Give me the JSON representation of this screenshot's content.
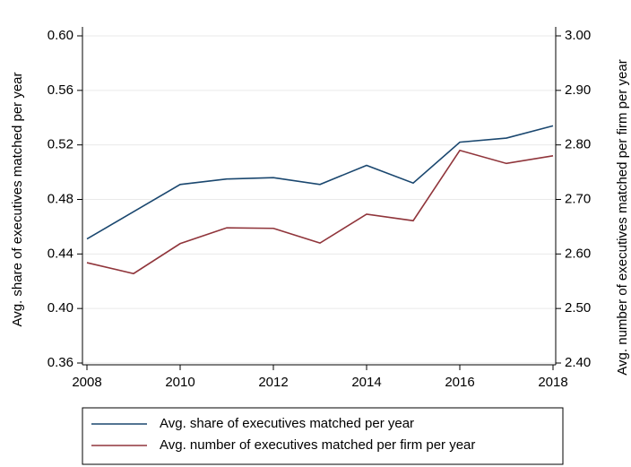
{
  "chart_data": {
    "type": "line",
    "x": [
      2008,
      2009,
      2010,
      2011,
      2012,
      2013,
      2014,
      2015,
      2016,
      2017,
      2018
    ],
    "xlim": [
      2008,
      2018
    ],
    "xticks": [
      2008,
      2010,
      2012,
      2014,
      2016,
      2018
    ],
    "ylabel": "Avg. share of executives matched per year",
    "y2label": "Avg. number of executives matched per firm per year",
    "ylim": [
      0.36,
      0.6
    ],
    "yticks": [
      {
        "value": 0.36,
        "label": "0.36"
      },
      {
        "value": 0.4,
        "label": "0.40"
      },
      {
        "value": 0.44,
        "label": "0.44"
      },
      {
        "value": 0.48,
        "label": "0.48"
      },
      {
        "value": 0.52,
        "label": "0.52"
      },
      {
        "value": 0.56,
        "label": "0.56"
      },
      {
        "value": 0.6,
        "label": "0.60"
      }
    ],
    "y2lim": [
      2.4,
      3.0
    ],
    "y2ticks": [
      {
        "value": 2.4,
        "label": "2.40"
      },
      {
        "value": 2.5,
        "label": "2.50"
      },
      {
        "value": 2.6,
        "label": "2.60"
      },
      {
        "value": 2.7,
        "label": "2.70"
      },
      {
        "value": 2.8,
        "label": "2.80"
      },
      {
        "value": 2.9,
        "label": "2.90"
      },
      {
        "value": 3.0,
        "label": "3.00"
      }
    ],
    "grid": true,
    "legend": "bottom",
    "series": [
      {
        "name": "Avg. share of executives matched per year",
        "color": "#1a476f",
        "axis": "y",
        "values": [
          0.451,
          0.471,
          0.491,
          0.495,
          0.496,
          0.491,
          0.505,
          0.492,
          0.522,
          0.525,
          0.534
        ]
      },
      {
        "name": "Avg. number of executives matched per firm per year",
        "color": "#90353b",
        "axis": "y2",
        "values": [
          2.584,
          2.564,
          2.619,
          2.648,
          2.647,
          2.62,
          2.673,
          2.661,
          2.79,
          2.766,
          2.78
        ]
      }
    ]
  }
}
